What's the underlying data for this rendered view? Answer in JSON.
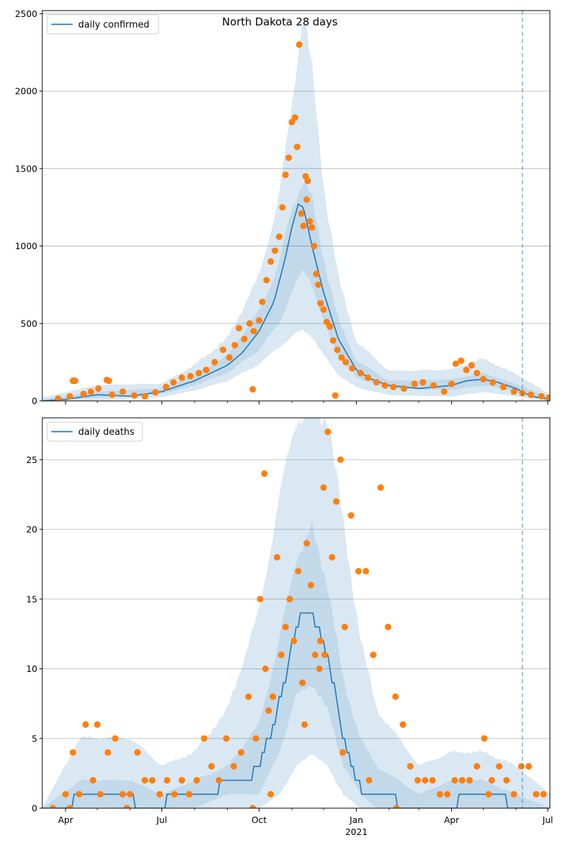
{
  "title": "North Dakota 28 days",
  "colors": {
    "line": "#1f77b4",
    "points": "#ff7f0e",
    "band": "#1f77b4",
    "grid": "#b0b0b0",
    "vline": "#1f77b4"
  },
  "x_tick_labels": [
    "Apr",
    "Jul",
    "Oct",
    "Jan",
    "Apr",
    "Jul"
  ],
  "x_year_label": "2021",
  "chart_data": [
    {
      "type": "line",
      "legend": "daily confirmed",
      "legend_position": "top-left",
      "grid": "horizontal",
      "xlim": [
        "2020-03-10",
        "2021-07-03"
      ],
      "ylim": [
        0,
        2520
      ],
      "yticks": [
        0,
        500,
        1000,
        1500,
        2000,
        2500
      ],
      "dashed_vline": "2021-06-07",
      "line": {
        "x": [
          "2020-03-10",
          "2020-04-01",
          "2020-05-01",
          "2020-06-01",
          "2020-07-01",
          "2020-08-01",
          "2020-09-01",
          "2020-09-15",
          "2020-10-01",
          "2020-10-15",
          "2020-10-25",
          "2020-11-01",
          "2020-11-07",
          "2020-11-12",
          "2020-11-20",
          "2020-12-01",
          "2020-12-15",
          "2021-01-01",
          "2021-01-15",
          "2021-02-01",
          "2021-03-01",
          "2021-04-01",
          "2021-04-15",
          "2021-05-01",
          "2021-05-15",
          "2021-06-01",
          "2021-06-15",
          "2021-07-03"
        ],
        "values": [
          0,
          10,
          40,
          30,
          60,
          130,
          230,
          310,
          450,
          640,
          900,
          1120,
          1270,
          1250,
          1000,
          700,
          400,
          200,
          140,
          100,
          80,
          100,
          130,
          140,
          120,
          80,
          30,
          10
        ]
      },
      "band_inner": {
        "x": [
          "2020-03-10",
          "2020-05-01",
          "2020-07-01",
          "2020-08-01",
          "2020-09-01",
          "2020-10-01",
          "2020-10-20",
          "2020-11-01",
          "2020-11-12",
          "2020-11-20",
          "2020-12-01",
          "2020-12-15",
          "2021-01-01",
          "2021-02-01",
          "2021-04-01",
          "2021-05-01",
          "2021-06-01",
          "2021-07-03"
        ],
        "low": [
          0,
          20,
          45,
          100,
          180,
          330,
          500,
          700,
          850,
          760,
          500,
          290,
          150,
          80,
          70,
          100,
          60,
          0
        ],
        "high": [
          10,
          60,
          80,
          170,
          290,
          580,
          880,
          1250,
          1430,
          1300,
          920,
          520,
          260,
          130,
          140,
          180,
          110,
          20
        ]
      },
      "band_outer": {
        "x": [
          "2020-03-10",
          "2020-05-01",
          "2020-07-01",
          "2020-08-01",
          "2020-09-01",
          "2020-10-01",
          "2020-10-20",
          "2020-11-01",
          "2020-11-12",
          "2020-11-20",
          "2020-12-01",
          "2020-12-15",
          "2021-01-01",
          "2021-02-01",
          "2021-04-01",
          "2021-05-01",
          "2021-06-01",
          "2021-07-03"
        ],
        "low": [
          0,
          5,
          25,
          70,
          130,
          240,
          350,
          420,
          460,
          420,
          300,
          170,
          90,
          40,
          30,
          60,
          30,
          0
        ],
        "high": [
          20,
          100,
          110,
          230,
          400,
          800,
          1300,
          1900,
          2520,
          2100,
          1380,
          780,
          380,
          190,
          200,
          270,
          170,
          40
        ]
      },
      "points": {
        "x": [
          "2020-03-25",
          "2020-04-05",
          "2020-04-10",
          "2020-04-18",
          "2020-04-25",
          "2020-05-02",
          "2020-05-10",
          "2020-05-15",
          "2020-05-25",
          "2020-06-05",
          "2020-06-15",
          "2020-06-25",
          "2020-07-05",
          "2020-07-12",
          "2020-07-20",
          "2020-07-28",
          "2020-08-05",
          "2020-08-12",
          "2020-08-20",
          "2020-08-28",
          "2020-09-03",
          "2020-09-08",
          "2020-09-12",
          "2020-09-17",
          "2020-09-22",
          "2020-09-26",
          "2020-10-01",
          "2020-10-04",
          "2020-10-08",
          "2020-10-12",
          "2020-10-16",
          "2020-10-20",
          "2020-10-23",
          "2020-10-26",
          "2020-10-29",
          "2020-11-01",
          "2020-11-04",
          "2020-11-06",
          "2020-11-08",
          "2020-11-10",
          "2020-11-12",
          "2020-11-14",
          "2020-11-16",
          "2020-11-18",
          "2020-11-20",
          "2020-11-22",
          "2020-11-24",
          "2020-11-26",
          "2020-11-28",
          "2020-12-01",
          "2020-12-04",
          "2020-12-07",
          "2020-12-10",
          "2020-12-14",
          "2020-12-18",
          "2020-12-22",
          "2020-12-28",
          "2021-01-05",
          "2021-01-12",
          "2021-01-20",
          "2021-01-28",
          "2021-02-05",
          "2021-02-15",
          "2021-02-25",
          "2021-03-05",
          "2021-03-15",
          "2021-03-25",
          "2021-04-01",
          "2021-04-05",
          "2021-04-10",
          "2021-04-15",
          "2021-04-20",
          "2021-04-25",
          "2021-05-01",
          "2021-05-10",
          "2021-05-20",
          "2021-05-30",
          "2021-06-07",
          "2021-06-15",
          "2021-06-25",
          "2021-07-02",
          "2020-04-08",
          "2020-05-12",
          "2020-09-25",
          "2020-11-15",
          "2020-12-12"
        ],
        "values": [
          15,
          30,
          130,
          45,
          60,
          80,
          135,
          40,
          60,
          35,
          30,
          55,
          90,
          120,
          150,
          160,
          180,
          200,
          250,
          330,
          280,
          360,
          470,
          400,
          500,
          450,
          520,
          640,
          780,
          900,
          970,
          1060,
          1250,
          1460,
          1570,
          1800,
          1830,
          1640,
          2300,
          1210,
          1130,
          1450,
          1420,
          1160,
          1120,
          1000,
          820,
          750,
          630,
          590,
          510,
          480,
          390,
          330,
          280,
          250,
          210,
          180,
          150,
          120,
          100,
          90,
          80,
          110,
          120,
          100,
          60,
          110,
          240,
          260,
          200,
          230,
          180,
          140,
          120,
          90,
          60,
          50,
          40,
          30,
          20,
          130,
          130,
          75,
          1300,
          35
        ]
      }
    },
    {
      "type": "line",
      "legend": "daily deaths",
      "legend_position": "top-left",
      "grid": "horizontal",
      "xlim": [
        "2020-03-10",
        "2021-07-03"
      ],
      "ylim": [
        0,
        28
      ],
      "yticks": [
        0,
        5,
        10,
        15,
        20,
        25
      ],
      "dashed_vline": "2021-06-07",
      "line": {
        "x": [
          "2020-03-10",
          "2020-04-01",
          "2020-04-15",
          "2020-05-15",
          "2020-06-01",
          "2020-06-10",
          "2020-07-01",
          "2020-07-10",
          "2020-08-01",
          "2020-08-15",
          "2020-09-01",
          "2020-09-20",
          "2020-10-01",
          "2020-10-15",
          "2020-10-25",
          "2020-11-01",
          "2020-11-10",
          "2020-11-20",
          "2020-12-01",
          "2020-12-10",
          "2020-12-20",
          "2021-01-01",
          "2021-01-10",
          "2021-01-20",
          "2021-02-01",
          "2021-02-15",
          "2021-03-01",
          "2021-04-01",
          "2021-04-15",
          "2021-05-01",
          "2021-05-15",
          "2021-06-01",
          "2021-06-15",
          "2021-07-03"
        ],
        "values": [
          0,
          0,
          1,
          1,
          1,
          0,
          0,
          1,
          1,
          1,
          2,
          2,
          3,
          6,
          9,
          12,
          14,
          14,
          12,
          9,
          5,
          2,
          1,
          1,
          1,
          0,
          0,
          0,
          1,
          1,
          1,
          0,
          0,
          0
        ]
      },
      "band_inner": {
        "x": [
          "2020-03-10",
          "2020-04-15",
          "2020-06-01",
          "2020-07-01",
          "2020-08-01",
          "2020-09-01",
          "2020-10-01",
          "2020-10-20",
          "2020-11-05",
          "2020-11-20",
          "2020-12-05",
          "2020-12-20",
          "2021-01-05",
          "2021-01-20",
          "2021-02-10",
          "2021-03-01",
          "2021-04-01",
          "2021-05-01",
          "2021-06-01",
          "2021-07-03"
        ],
        "low": [
          0,
          0,
          0,
          0,
          0,
          1,
          1,
          4,
          8,
          9,
          7,
          3,
          1,
          0,
          0,
          0,
          0,
          0,
          0,
          0
        ],
        "high": [
          0,
          2,
          2,
          1,
          2,
          3,
          6,
          12,
          18,
          20,
          16,
          9,
          5,
          3,
          2,
          1,
          2,
          2,
          1,
          0
        ]
      },
      "band_outer": {
        "x": [
          "2020-03-10",
          "2020-04-15",
          "2020-06-01",
          "2020-07-01",
          "2020-08-01",
          "2020-09-01",
          "2020-10-01",
          "2020-10-20",
          "2020-11-05",
          "2020-11-20",
          "2020-12-05",
          "2020-12-20",
          "2021-01-05",
          "2021-01-20",
          "2021-02-10",
          "2021-03-01",
          "2021-04-01",
          "2021-05-01",
          "2021-06-01",
          "2021-07-03"
        ],
        "low": [
          0,
          0,
          0,
          0,
          0,
          0,
          0,
          1,
          3,
          4,
          3,
          1,
          0,
          0,
          0,
          0,
          0,
          0,
          0,
          0
        ],
        "high": [
          0,
          5,
          5,
          3,
          4,
          7,
          14,
          22,
          28,
          28,
          28,
          20,
          12,
          7,
          5,
          3,
          4,
          4,
          3,
          1
        ]
      },
      "points": {
        "x": [
          "2020-03-20",
          "2020-04-01",
          "2020-04-08",
          "2020-04-14",
          "2020-04-20",
          "2020-04-27",
          "2020-05-04",
          "2020-05-11",
          "2020-05-18",
          "2020-05-25",
          "2020-06-01",
          "2020-06-08",
          "2020-06-15",
          "2020-06-22",
          "2020-06-29",
          "2020-07-06",
          "2020-07-13",
          "2020-07-20",
          "2020-07-27",
          "2020-08-03",
          "2020-08-10",
          "2020-08-17",
          "2020-08-24",
          "2020-08-31",
          "2020-09-07",
          "2020-09-14",
          "2020-09-21",
          "2020-09-28",
          "2020-10-02",
          "2020-10-06",
          "2020-10-10",
          "2020-10-14",
          "2020-10-18",
          "2020-10-22",
          "2020-10-26",
          "2020-10-30",
          "2020-11-03",
          "2020-11-07",
          "2020-11-11",
          "2020-11-15",
          "2020-11-19",
          "2020-11-23",
          "2020-11-27",
          "2020-12-01",
          "2020-12-05",
          "2020-12-09",
          "2020-12-13",
          "2020-12-17",
          "2020-12-21",
          "2020-12-27",
          "2021-01-03",
          "2021-01-10",
          "2021-01-17",
          "2021-01-24",
          "2021-01-31",
          "2021-02-07",
          "2021-02-14",
          "2021-02-21",
          "2021-02-28",
          "2021-03-07",
          "2021-03-14",
          "2021-03-21",
          "2021-03-28",
          "2021-04-04",
          "2021-04-11",
          "2021-04-18",
          "2021-04-25",
          "2021-05-02",
          "2021-05-09",
          "2021-05-16",
          "2021-05-23",
          "2021-05-30",
          "2021-06-06",
          "2021-06-13",
          "2021-06-20",
          "2021-06-27",
          "2020-04-05",
          "2020-05-01",
          "2020-05-29",
          "2020-09-25",
          "2020-10-07",
          "2020-10-12",
          "2020-11-13",
          "2020-11-28",
          "2020-12-02",
          "2020-12-19",
          "2021-01-13",
          "2021-02-08",
          "2021-05-06"
        ],
        "values": [
          0,
          1,
          4,
          1,
          6,
          2,
          1,
          4,
          5,
          1,
          1,
          4,
          2,
          2,
          1,
          2,
          1,
          2,
          1,
          2,
          5,
          3,
          2,
          5,
          3,
          4,
          8,
          5,
          15,
          24,
          7,
          8,
          18,
          11,
          13,
          15,
          12,
          17,
          9,
          19,
          16,
          11,
          10,
          23,
          27,
          18,
          22,
          25,
          13,
          21,
          17,
          17,
          11,
          23,
          13,
          8,
          6,
          3,
          2,
          2,
          2,
          1,
          1,
          2,
          2,
          2,
          3,
          5,
          2,
          3,
          2,
          1,
          3,
          3,
          1,
          1,
          0,
          6,
          0,
          0,
          10,
          1,
          6,
          12,
          11,
          4,
          2,
          0,
          1
        ]
      }
    }
  ]
}
